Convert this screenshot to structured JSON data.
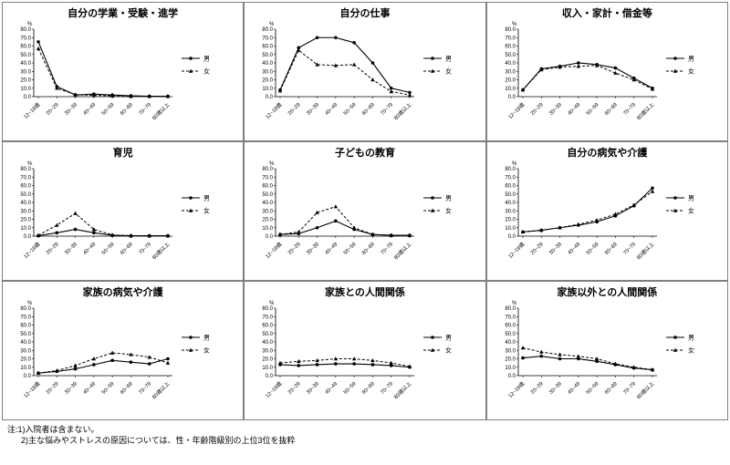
{
  "page": {
    "notes": [
      "注:1)入院者は含まない。",
      "2)主な悩みやストレスの原因については、性・年齢階級別の上位3位を抜粋"
    ]
  },
  "legend": {
    "male": "男",
    "female": "女"
  },
  "axis": {
    "unit": "%",
    "ymin": 0,
    "ymax": 80,
    "ystep": 10
  },
  "chart_data": [
    {
      "type": "line",
      "title": "自分の学業・受験・進学",
      "categories": [
        "12~19歳",
        "20~29",
        "30~39",
        "40~49",
        "50~59",
        "60~69",
        "70~79",
        "80歳以上"
      ],
      "ylim": [
        0,
        80
      ],
      "series": [
        {
          "name": "男",
          "values": [
            65.0,
            12.0,
            2.0,
            3.0,
            2.0,
            1.0,
            0.5,
            0.5
          ]
        },
        {
          "name": "女",
          "values": [
            57.0,
            10.0,
            2.5,
            1.5,
            1.0,
            0.5,
            0.5,
            0.5
          ]
        }
      ]
    },
    {
      "type": "line",
      "title": "自分の仕事",
      "categories": [
        "12~19歳",
        "20~29",
        "30~39",
        "40~49",
        "50~59",
        "60~69",
        "70~79",
        "80歳以上"
      ],
      "ylim": [
        0,
        80
      ],
      "series": [
        {
          "name": "男",
          "values": [
            8.0,
            58.0,
            70.0,
            70.0,
            64.0,
            40.0,
            10.0,
            5.0
          ]
        },
        {
          "name": "女",
          "values": [
            7.0,
            55.0,
            38.0,
            37.0,
            38.0,
            20.0,
            6.0,
            2.0
          ]
        }
      ]
    },
    {
      "type": "line",
      "title": "収入・家計・借金等",
      "categories": [
        "12~19歳",
        "20~29",
        "30~39",
        "40~49",
        "50~59",
        "60~69",
        "70~79",
        "80歳以上"
      ],
      "ylim": [
        0,
        80
      ],
      "series": [
        {
          "name": "男",
          "values": [
            8.0,
            33.0,
            36.0,
            40.0,
            38.0,
            34.0,
            22.0,
            10.0
          ]
        },
        {
          "name": "女",
          "values": [
            8.0,
            32.0,
            35.0,
            36.0,
            37.0,
            28.0,
            20.0,
            9.0
          ]
        }
      ]
    },
    {
      "type": "line",
      "title": "育児",
      "categories": [
        "12~19歳",
        "20~29",
        "30~39",
        "40~49",
        "50~59",
        "60~69",
        "70~79",
        "80歳以上"
      ],
      "ylim": [
        0,
        80
      ],
      "series": [
        {
          "name": "男",
          "values": [
            0.5,
            4.0,
            8.0,
            4.0,
            1.0,
            0.5,
            0.5,
            0.5
          ]
        },
        {
          "name": "女",
          "values": [
            1.0,
            13.0,
            27.0,
            8.0,
            1.5,
            0.5,
            0.5,
            0.5
          ]
        }
      ]
    },
    {
      "type": "line",
      "title": "子どもの教育",
      "categories": [
        "12~19歳",
        "20~29",
        "30~39",
        "40~49",
        "50~59",
        "60~69",
        "70~79",
        "80歳以上"
      ],
      "ylim": [
        0,
        80
      ],
      "series": [
        {
          "name": "男",
          "values": [
            2.0,
            3.0,
            10.0,
            18.0,
            8.0,
            2.0,
            1.0,
            1.0
          ]
        },
        {
          "name": "女",
          "values": [
            2.0,
            5.0,
            28.0,
            35.0,
            10.0,
            2.0,
            1.0,
            1.0
          ]
        }
      ]
    },
    {
      "type": "line",
      "title": "自分の病気や介護",
      "categories": [
        "12~19歳",
        "20~29",
        "30~39",
        "40~49",
        "50~59",
        "60~69",
        "70~79",
        "80歳以上"
      ],
      "ylim": [
        0,
        80
      ],
      "series": [
        {
          "name": "男",
          "values": [
            5.0,
            7.0,
            10.0,
            13.0,
            17.0,
            24.0,
            36.0,
            57.0
          ]
        },
        {
          "name": "女",
          "values": [
            5.0,
            7.0,
            10.0,
            14.0,
            19.0,
            26.0,
            37.0,
            53.0
          ]
        }
      ]
    },
    {
      "type": "line",
      "title": "家族の病気や介護",
      "categories": [
        "12~19歳",
        "20~29",
        "30~39",
        "40~49",
        "50~59",
        "60~69",
        "70~79",
        "80歳以上"
      ],
      "ylim": [
        0,
        80
      ],
      "series": [
        {
          "name": "男",
          "values": [
            3.0,
            5.0,
            8.0,
            13.0,
            18.0,
            16.0,
            14.0,
            20.0
          ]
        },
        {
          "name": "女",
          "values": [
            3.0,
            6.0,
            12.0,
            20.0,
            27.0,
            25.0,
            22.0,
            15.0
          ]
        }
      ]
    },
    {
      "type": "line",
      "title": "家族との人間関係",
      "categories": [
        "12~19歳",
        "20~29",
        "30~39",
        "40~49",
        "50~59",
        "60~69",
        "70~79",
        "80歳以上"
      ],
      "ylim": [
        0,
        80
      ],
      "series": [
        {
          "name": "男",
          "values": [
            13.0,
            12.0,
            13.0,
            14.0,
            14.0,
            13.0,
            12.0,
            10.0
          ]
        },
        {
          "name": "女",
          "values": [
            15.0,
            17.0,
            18.0,
            20.0,
            20.0,
            18.0,
            15.0,
            11.0
          ]
        }
      ]
    },
    {
      "type": "line",
      "title": "家族以外との人間関係",
      "categories": [
        "12~19歳",
        "20~29",
        "30~39",
        "40~49",
        "50~59",
        "60~69",
        "70~79",
        "80歳以上"
      ],
      "ylim": [
        0,
        80
      ],
      "series": [
        {
          "name": "男",
          "values": [
            21.0,
            23.0,
            20.0,
            20.0,
            17.0,
            13.0,
            9.0,
            7.0
          ]
        },
        {
          "name": "女",
          "values": [
            33.0,
            28.0,
            25.0,
            23.0,
            20.0,
            14.0,
            10.0,
            7.0
          ]
        }
      ]
    }
  ]
}
